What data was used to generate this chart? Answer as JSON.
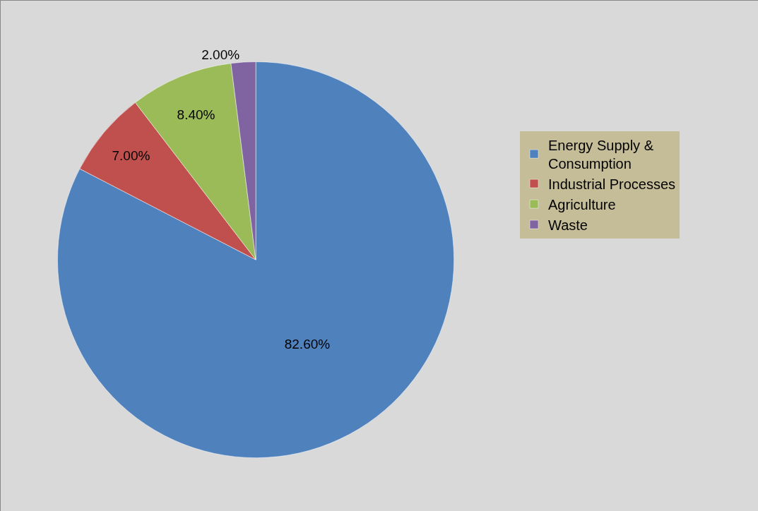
{
  "chart_data": {
    "type": "pie",
    "categories": [
      "Energy Supply & Consumption",
      "Industrial Processes",
      "Agriculture",
      "Waste"
    ],
    "values": [
      82.6,
      7.0,
      8.4,
      2.0
    ],
    "value_labels": [
      "82.60%",
      "7.00%",
      "8.40%",
      "2.00%"
    ],
    "colors": [
      "#4f81bd",
      "#c0504d",
      "#9bbb59",
      "#8064a2"
    ],
    "legend": "right"
  }
}
